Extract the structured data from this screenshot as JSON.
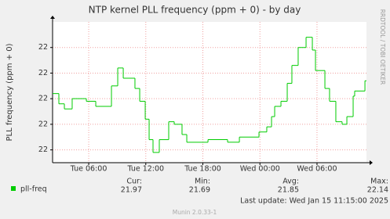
{
  "chart_data": {
    "type": "line",
    "title": "NTP kernel PLL frequency (ppm + 0) - by day",
    "y_label": "PLL frequency (ppm + 0)",
    "side_label": "RRDTOOL / TOBI OETIKER",
    "xlim": [
      2.2,
      35.2
    ],
    "xticks": [
      {
        "value": 6,
        "label": "Tue 06:00"
      },
      {
        "value": 12,
        "label": "Tue 12:00"
      },
      {
        "value": 18,
        "label": "Tue 18:00"
      },
      {
        "value": 24,
        "label": "Wed 00:00"
      },
      {
        "value": 30,
        "label": "Wed 06:00"
      }
    ],
    "ylim": [
      21.65,
      22.2
    ],
    "yticks": [
      {
        "value": 21.7,
        "label": "22"
      },
      {
        "value": 21.8,
        "label": "22"
      },
      {
        "value": 21.9,
        "label": "22"
      },
      {
        "value": 22.0,
        "label": "22"
      },
      {
        "value": 22.1,
        "label": "22"
      }
    ],
    "grid": true,
    "series": [
      {
        "name": "pll-freq",
        "color": "#00cc00",
        "x": [
          2.2,
          2.86,
          3.44,
          4.26,
          5.75,
          6.74,
          8.39,
          9.05,
          9.63,
          10.86,
          11.36,
          11.94,
          12.35,
          12.76,
          13.42,
          14.41,
          14.99,
          15.81,
          16.31,
          18.54,
          20.6,
          21.84,
          23.9,
          24.72,
          25.22,
          25.55,
          26.21,
          26.87,
          27.36,
          28.02,
          28.85,
          29.51,
          29.84,
          30.83,
          31.32,
          31.98,
          32.64,
          33.14,
          33.8,
          33.96,
          35.04
        ],
        "values": [
          21.92,
          21.88,
          21.86,
          21.9,
          21.89,
          21.87,
          21.95,
          22.02,
          21.98,
          21.94,
          21.89,
          21.82,
          21.74,
          21.69,
          21.74,
          21.81,
          21.8,
          21.76,
          21.73,
          21.74,
          21.73,
          21.75,
          21.77,
          21.79,
          21.83,
          21.87,
          21.89,
          21.96,
          22.03,
          22.1,
          22.14,
          22.09,
          22.01,
          21.94,
          21.89,
          21.81,
          21.8,
          21.83,
          21.91,
          21.93,
          21.97
        ]
      }
    ],
    "legend": {
      "headers": [
        "Cur:",
        "Min:",
        "Avg:",
        "Max:"
      ],
      "values": [
        "21.97",
        "21.69",
        "21.85",
        "22.14"
      ]
    },
    "last_update": "Last update: Wed Jan 15 11:15:00 2025",
    "footer": "Munin 2.0.33-1"
  }
}
